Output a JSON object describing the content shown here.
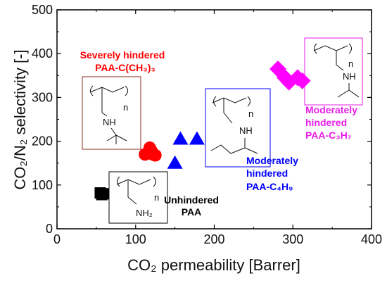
{
  "chart_data": {
    "type": "scatter",
    "title": "",
    "xlabel": "CO₂ permeability [Barrer]",
    "ylabel": "CO₂/N₂ selectivity [-]",
    "xlim": [
      0,
      400
    ],
    "ylim": [
      0,
      500
    ],
    "xticks": [
      "0",
      "100",
      "200",
      "300",
      "400"
    ],
    "yticks": [
      "0",
      "100",
      "200",
      "300",
      "400",
      "500"
    ],
    "grid": false,
    "series": [
      {
        "name": "Unhindered PAA",
        "color": "#000000",
        "marker": "square",
        "points": [
          [
            55,
            82
          ],
          [
            57,
            78
          ],
          [
            60,
            80
          ]
        ]
      },
      {
        "name": "Severely hindered PAA-C(CH3)3",
        "color": "#ff0000",
        "marker": "circle",
        "points": [
          [
            112,
            170
          ],
          [
            118,
            185
          ],
          [
            122,
            170
          ],
          [
            120,
            178
          ],
          [
            125,
            168
          ]
        ]
      },
      {
        "name": "Moderately hindered PAA-C4H9",
        "color": "#0000ff",
        "marker": "triangle",
        "points": [
          [
            150,
            150
          ],
          [
            157,
            205
          ],
          [
            178,
            205
          ]
        ]
      },
      {
        "name": "Moderately hindered PAA-C3H7",
        "color": "#ff00ff",
        "marker": "diamond",
        "points": [
          [
            281,
            365
          ],
          [
            290,
            345
          ],
          [
            295,
            335
          ],
          [
            306,
            345
          ],
          [
            312,
            338
          ]
        ]
      }
    ],
    "annotations": {
      "unhindered": {
        "line1": "Unhindered",
        "line2": "PAA",
        "color": "#000000"
      },
      "severe": {
        "line1": "Severely hindered",
        "line2": "PAA-C(CH₃)₃",
        "color": "#ff0000"
      },
      "butyl": {
        "line1": "Moderately",
        "line2": "hindered",
        "line3": "PAA-C₄H₉",
        "color": "#0000ff"
      },
      "propyl": {
        "line1": "Moderately",
        "line2": "hindered",
        "line3": "PAA-C₃H₇",
        "color": "#e81ee8"
      }
    },
    "structure_labels": {
      "n": "n",
      "nh": "NH",
      "nh2": "NH₂"
    }
  }
}
